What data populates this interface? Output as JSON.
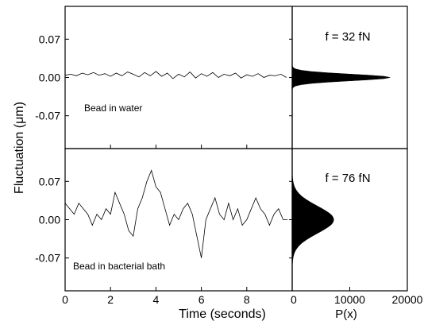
{
  "chart_data": {
    "type": "line",
    "ylabel": "Fluctuation (μm)",
    "xlabel": "Time (seconds)",
    "hist_xlabel": "P(x)",
    "xlim": [
      0,
      10
    ],
    "x_ticks": [
      0,
      2,
      4,
      6,
      8
    ],
    "ylim": [
      -0.13,
      0.13
    ],
    "y_ticks": [
      0.07,
      0.0,
      -0.07
    ],
    "y_tick_labels": [
      "0.07",
      "0.00",
      "-0.07"
    ],
    "hist_xlim": [
      0,
      20000
    ],
    "hist_x_ticks": [
      0,
      10000,
      20000
    ],
    "hist_x_tick_labels": [
      "0",
      "10000",
      "20000"
    ],
    "panels": [
      {
        "annotation": "Bead in water",
        "force_label": "f = 32 fN",
        "series": {
          "x": [
            0.0,
            0.25,
            0.5,
            0.75,
            1.0,
            1.25,
            1.5,
            1.75,
            2.0,
            2.25,
            2.5,
            2.75,
            3.0,
            3.25,
            3.5,
            3.75,
            4.0,
            4.25,
            4.5,
            4.75,
            5.0,
            5.25,
            5.5,
            5.75,
            6.0,
            6.25,
            6.5,
            6.75,
            7.0,
            7.25,
            7.5,
            7.75,
            8.0,
            8.25,
            8.5,
            8.75,
            9.0,
            9.25,
            9.5,
            9.75
          ],
          "y": [
            0.004,
            0.006,
            0.003,
            0.008,
            0.005,
            0.009,
            0.004,
            0.007,
            0.002,
            0.008,
            0.003,
            0.01,
            0.006,
            0.001,
            0.009,
            0.003,
            0.011,
            0.002,
            0.008,
            -0.002,
            0.006,
            0.001,
            0.01,
            -0.001,
            0.007,
            0.002,
            0.009,
            0.0,
            0.006,
            0.003,
            0.008,
            -0.001,
            0.005,
            0.002,
            0.007,
            0.0,
            0.004,
            0.003,
            0.006,
            0.0
          ]
        },
        "histogram": {
          "peak": 17000,
          "center": 0.0,
          "sigma": 0.006
        }
      },
      {
        "annotation": "Bead in bacterial bath",
        "force_label": "f = 76 fN",
        "series": {
          "x": [
            0.0,
            0.2,
            0.4,
            0.6,
            0.8,
            1.0,
            1.2,
            1.4,
            1.6,
            1.8,
            2.0,
            2.2,
            2.4,
            2.6,
            2.8,
            3.0,
            3.2,
            3.4,
            3.6,
            3.8,
            4.0,
            4.2,
            4.4,
            4.6,
            4.8,
            5.0,
            5.2,
            5.4,
            5.6,
            5.8,
            6.0,
            6.2,
            6.4,
            6.6,
            6.8,
            7.0,
            7.2,
            7.4,
            7.6,
            7.8,
            8.0,
            8.2,
            8.4,
            8.6,
            8.8,
            9.0,
            9.2,
            9.4,
            9.6,
            9.8
          ],
          "y": [
            0.03,
            0.02,
            0.01,
            0.03,
            0.02,
            0.01,
            -0.01,
            0.01,
            0.0,
            0.02,
            0.01,
            0.05,
            0.03,
            0.01,
            -0.02,
            -0.03,
            0.02,
            0.04,
            0.07,
            0.09,
            0.06,
            0.05,
            0.02,
            -0.01,
            0.01,
            0.0,
            0.02,
            0.03,
            0.01,
            -0.03,
            -0.07,
            0.0,
            0.02,
            0.04,
            0.01,
            0.0,
            0.03,
            0.0,
            0.02,
            -0.01,
            0.0,
            0.02,
            0.04,
            0.02,
            0.01,
            -0.01,
            0.01,
            0.02,
            0.0,
            0.0
          ]
        },
        "histogram": {
          "peak": 7200,
          "center": 0.0,
          "sigma": 0.025
        }
      }
    ]
  }
}
